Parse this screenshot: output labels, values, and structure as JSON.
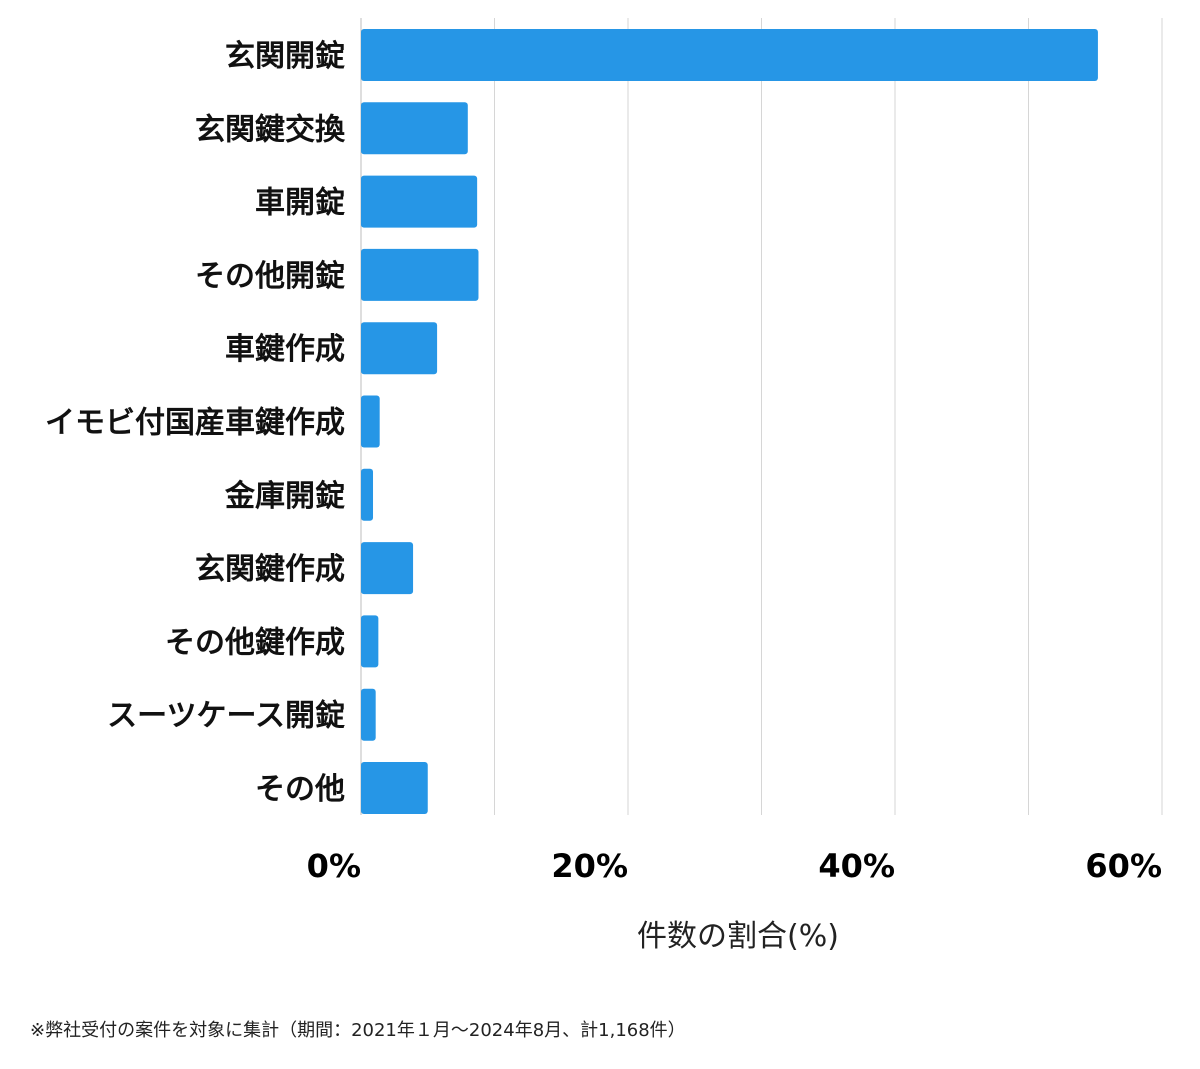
{
  "chart_data": {
    "type": "bar",
    "orientation": "horizontal",
    "categories": [
      "玄関開錠",
      "玄関鍵交換",
      "車開錠",
      "その他開錠",
      "車鍵作成",
      "イモビ付国産車鍵作成",
      "金庫開錠",
      "玄関鍵作成",
      "その他鍵作成",
      "スーツケース開錠",
      "その他"
    ],
    "values": [
      55.2,
      8.0,
      8.7,
      8.8,
      5.7,
      1.4,
      0.9,
      3.9,
      1.3,
      1.1,
      5.0
    ],
    "xlim": [
      0,
      60
    ],
    "xticks": [
      0,
      20,
      40,
      60
    ],
    "tick_labels": [
      "0%",
      "20%",
      "40%",
      "60%"
    ],
    "xlabel": "件数の割合(%)",
    "bar_color": "#2696e6",
    "grid": "vertical"
  },
  "footnote": "※弊社受付の案件を対象に集計（期間：2021年１月〜2024年8月、計1,168件）"
}
